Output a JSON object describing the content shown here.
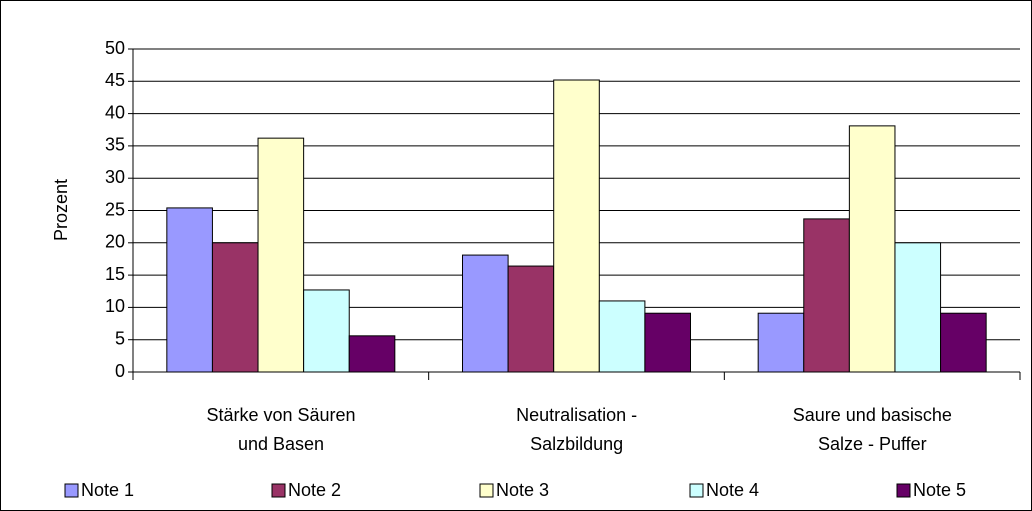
{
  "chart_data": {
    "type": "bar",
    "y_label": "Prozent",
    "categories": [
      "Stärke von Säuren\nund Basen",
      "Neutralisation -\nSalzbildung",
      "Saure und basische\nSalze - Puffer"
    ],
    "series": [
      {
        "name": "Note 1",
        "color": "#9999ff",
        "values": [
          25.4,
          18.1,
          9.1
        ]
      },
      {
        "name": "Note 2",
        "color": "#993366",
        "values": [
          20.0,
          16.4,
          23.7
        ]
      },
      {
        "name": "Note 3",
        "color": "#ffffcc",
        "values": [
          36.2,
          45.2,
          38.1
        ]
      },
      {
        "name": "Note 4",
        "color": "#ccffff",
        "values": [
          12.7,
          11.0,
          20.0
        ]
      },
      {
        "name": "Note 5",
        "color": "#660066",
        "values": [
          5.6,
          9.1,
          9.1
        ]
      }
    ],
    "ylim": [
      0,
      50
    ],
    "yticks": [
      0,
      5,
      10,
      15,
      20,
      25,
      30,
      35,
      40,
      45,
      50
    ],
    "grid": true,
    "legend": "bottom"
  }
}
